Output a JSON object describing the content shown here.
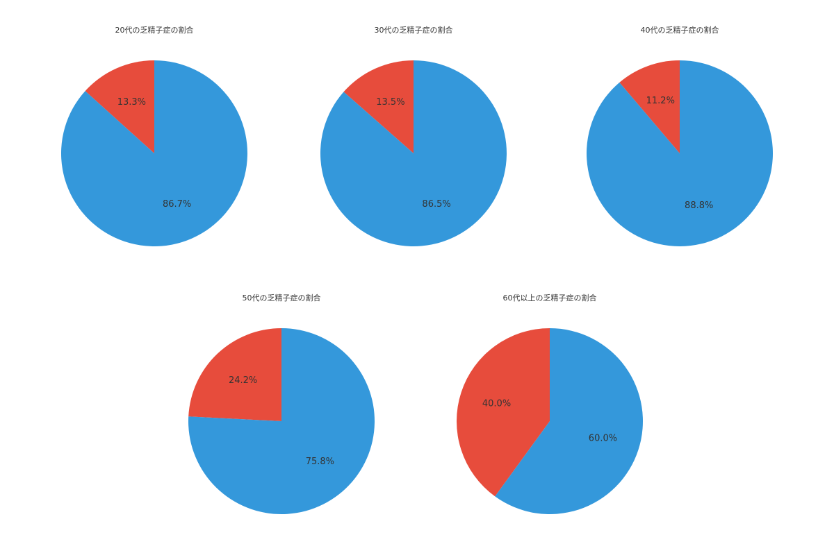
{
  "chart_data": [
    {
      "type": "pie",
      "title": "20代の乏精子症の割合",
      "slices": [
        {
          "value": 13.3,
          "label": "13.3%",
          "color": "#e74c3c"
        },
        {
          "value": 86.7,
          "label": "86.7%",
          "color": "#3498db"
        }
      ]
    },
    {
      "type": "pie",
      "title": "30代の乏精子症の割合",
      "slices": [
        {
          "value": 13.5,
          "label": "13.5%",
          "color": "#e74c3c"
        },
        {
          "value": 86.5,
          "label": "86.5%",
          "color": "#3498db"
        }
      ]
    },
    {
      "type": "pie",
      "title": "40代の乏精子症の割合",
      "slices": [
        {
          "value": 11.2,
          "label": "11.2%",
          "color": "#e74c3c"
        },
        {
          "value": 88.8,
          "label": "88.8%",
          "color": "#3498db"
        }
      ]
    },
    {
      "type": "pie",
      "title": "50代の乏精子症の割合",
      "slices": [
        {
          "value": 24.2,
          "label": "24.2%",
          "color": "#e74c3c"
        },
        {
          "value": 75.8,
          "label": "75.8%",
          "color": "#3498db"
        }
      ]
    },
    {
      "type": "pie",
      "title": "60代以上の乏精子症の割合",
      "slices": [
        {
          "value": 40.0,
          "label": "40.0%",
          "color": "#e74c3c"
        },
        {
          "value": 60.0,
          "label": "60.0%",
          "color": "#3498db"
        }
      ]
    }
  ]
}
